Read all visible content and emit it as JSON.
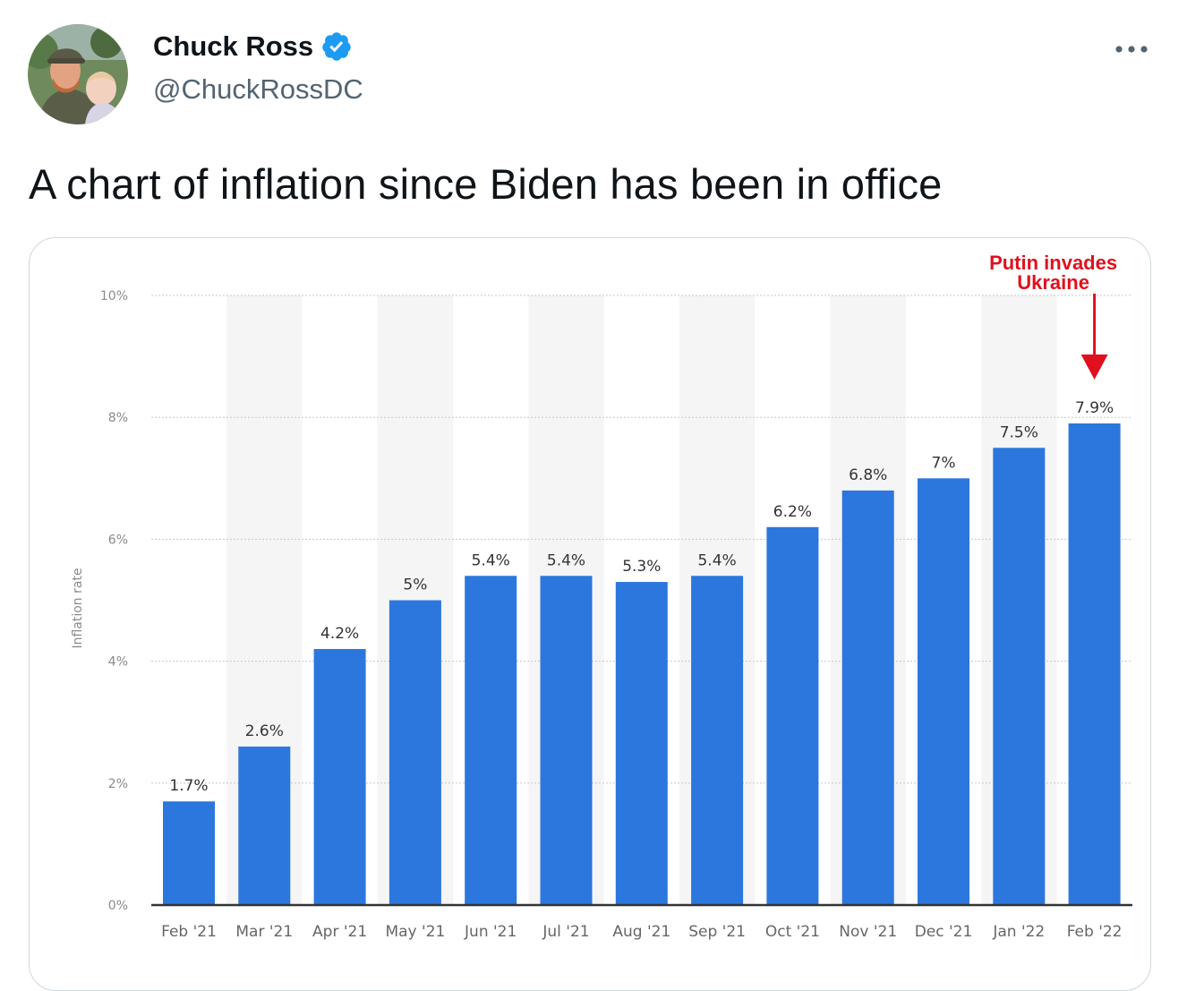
{
  "tweet": {
    "author": {
      "display_name": "Chuck Ross",
      "handle": "@ChuckRossDC",
      "verified": true
    },
    "text": "A chart of inflation since Biden has been in office",
    "icons": {
      "avatar": "avatar-photo-icon",
      "verified": "verified-badge-icon",
      "more": "more-options-icon"
    }
  },
  "colors": {
    "bar": "#2b77dd",
    "annotation": "#e0101e",
    "verified": "#1d9bf0",
    "axis_text": "#666666",
    "stripe": "#f5f5f5"
  },
  "chart_data": {
    "type": "bar",
    "categories": [
      "Feb '21",
      "Mar '21",
      "Apr '21",
      "May '21",
      "Jun '21",
      "Jul '21",
      "Aug '21",
      "Sep '21",
      "Oct '21",
      "Nov '21",
      "Dec '21",
      "Jan '22",
      "Feb '22"
    ],
    "values": [
      1.7,
      2.6,
      4.2,
      5.0,
      5.4,
      5.4,
      5.3,
      5.4,
      6.2,
      6.8,
      7.0,
      7.5,
      7.9
    ],
    "data_labels": [
      "1.7%",
      "2.6%",
      "4.2%",
      "5%",
      "5.4%",
      "5.4%",
      "5.3%",
      "5.4%",
      "6.2%",
      "6.8%",
      "7%",
      "7.5%",
      "7.9%"
    ],
    "ylabel": "Inflation rate",
    "ylim": [
      0,
      10
    ],
    "yticks": [
      0,
      2,
      4,
      6,
      8,
      10
    ],
    "ytick_labels": [
      "0%",
      "2%",
      "4%",
      "6%",
      "8%",
      "10%"
    ],
    "grid": true,
    "annotation": {
      "text_lines": [
        "Putin invades",
        "Ukraine"
      ],
      "category": "Feb '22",
      "arrow": "down"
    }
  }
}
